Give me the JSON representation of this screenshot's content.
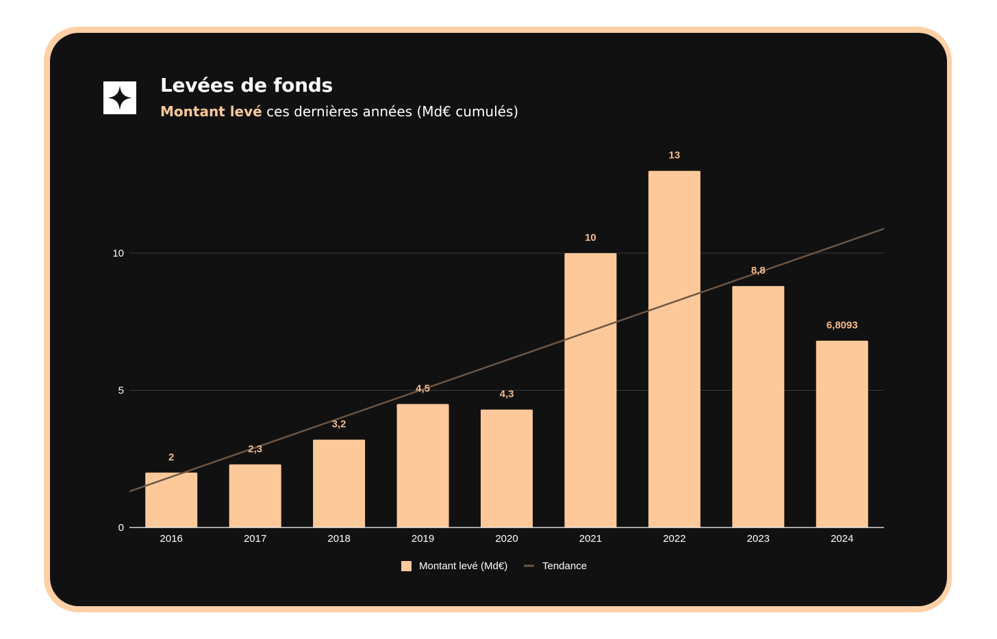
{
  "header": {
    "title": "Levées de fonds",
    "subtitle_accent": "Montant levé",
    "subtitle_rest": " ces dernières années (Md€ cumulés)",
    "logo_icon": "sparkle-star-icon"
  },
  "colors": {
    "frame": "#fdd0a6",
    "background": "#111111",
    "bar": "#fdc99a",
    "data_label": "#f3b98a",
    "trend": "#6b5646",
    "grid": "#3a3a3a"
  },
  "chart_data": {
    "type": "bar",
    "title": "Levées de fonds",
    "categories": [
      "2016",
      "2017",
      "2018",
      "2019",
      "2020",
      "2021",
      "2022",
      "2023",
      "2024"
    ],
    "values": [
      2,
      2.3,
      3.2,
      4.5,
      4.3,
      10,
      13,
      8.8,
      6.8093
    ],
    "data_labels": [
      "2",
      "2,3",
      "3,2",
      "4,5",
      "4,3",
      "10",
      "13",
      "8,8",
      "6,8093"
    ],
    "series": [
      {
        "name": "Montant levé (Md€)",
        "type": "bar",
        "values": [
          2,
          2.3,
          3.2,
          4.5,
          4.3,
          10,
          13,
          8.8,
          6.8093
        ]
      },
      {
        "name": "Tendance",
        "type": "linear-trendline"
      }
    ],
    "yticks": [
      "0",
      "5",
      "10"
    ],
    "ytick_values": [
      0,
      5,
      10
    ],
    "ylim": [
      0,
      15
    ],
    "xlabel": "",
    "ylabel": "",
    "grid": true,
    "legend": "bottom-center"
  }
}
